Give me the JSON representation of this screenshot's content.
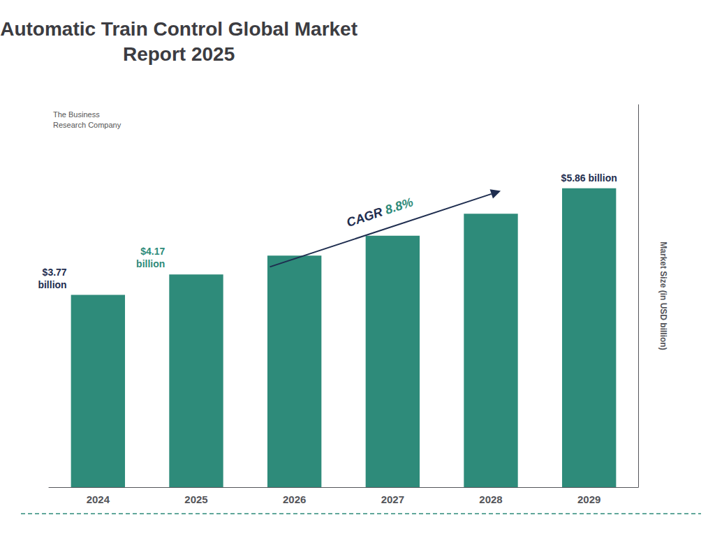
{
  "chart_data": {
    "type": "bar",
    "title": "Automatic Train Control Global Market\nReport 2025",
    "categories": [
      "2024",
      "2025",
      "2026",
      "2027",
      "2028",
      "2029"
    ],
    "values": [
      3.77,
      4.17,
      4.54,
      4.93,
      5.36,
      5.86
    ],
    "color": "#2e8b7a",
    "ylabel": "Market Size (in USD billion)",
    "ylim": [
      0,
      7.5
    ],
    "yticks": [],
    "tick_labels": "x",
    "grid": false,
    "annotations": [
      {
        "text": "$3.77\nbillion",
        "color": "#1e2d4f",
        "category": "2024"
      },
      {
        "text": "$4.17\nbillion",
        "color": "#2e8b7a",
        "category": "2025"
      },
      {
        "text": "$5.86 billion",
        "color": "#1e2d4f",
        "category": "2029"
      }
    ],
    "cagr": [
      {
        "text": "CAGR ",
        "color": "#1e2d4f"
      },
      {
        "text": "8.8%",
        "color": "#2e8b7a"
      }
    ],
    "logo_text": "The Business\nResearch Company"
  }
}
